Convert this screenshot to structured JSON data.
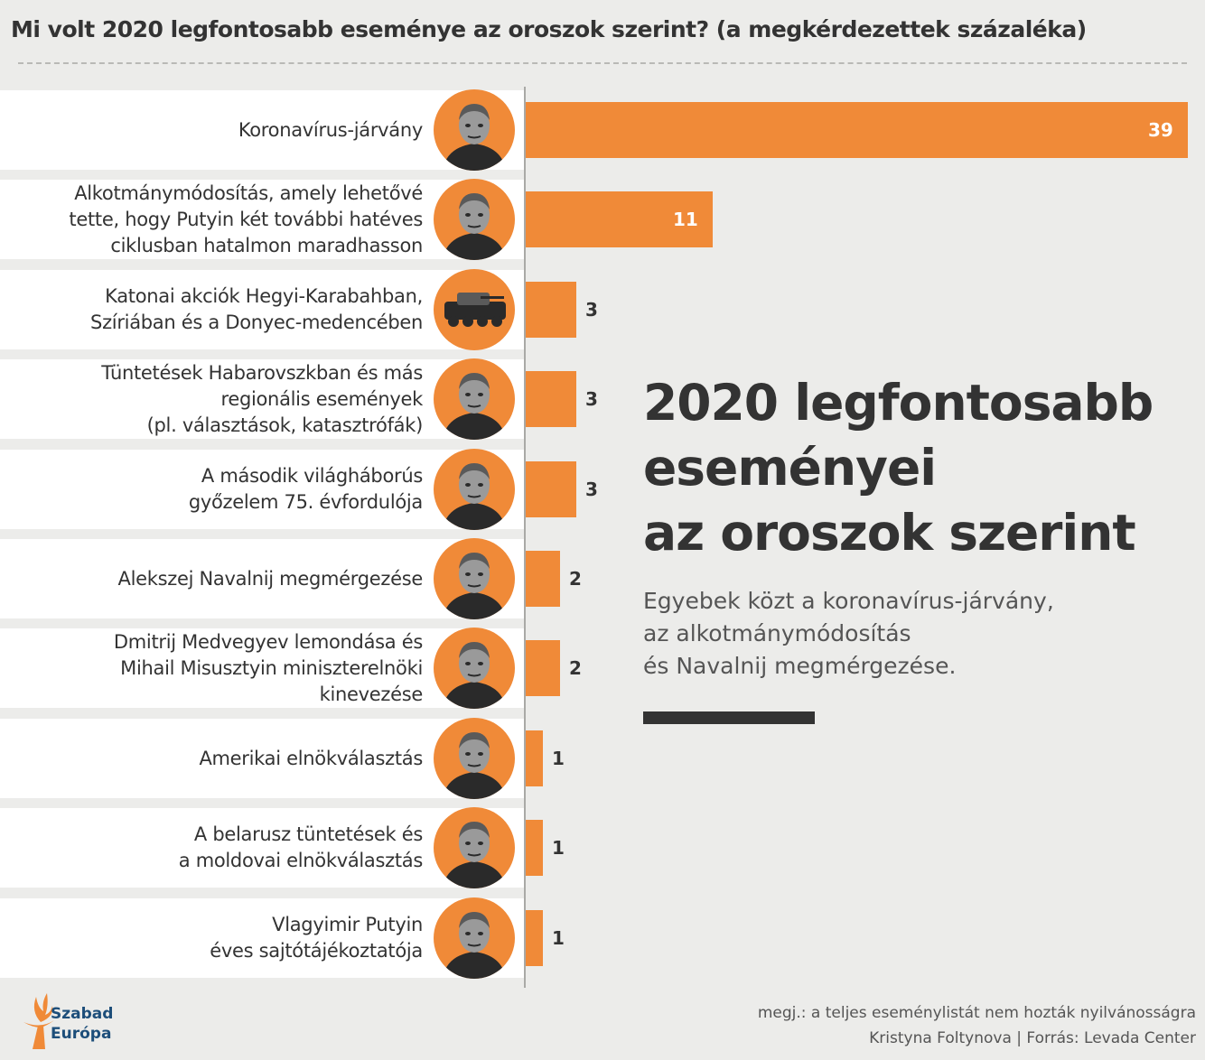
{
  "title": "Mi volt 2020 legfontosabb eseménye az oroszok szerint? (a megkérdezettek százaléka)",
  "headline": [
    "2020 legfontosabb",
    "eseményei",
    "az oroszok szerint"
  ],
  "subtext": [
    "Egyebek közt a koronavírus-járvány,",
    "az alkotmánymódosítás",
    "és Navalnij megmérgezése."
  ],
  "footnote": [
    "megj.: a teljes eseménylistát nem hozták nyilvánosságra",
    "Kristyna Foltynova | Forrás: Levada Center"
  ],
  "logo": {
    "line1": "Szabad",
    "line2": "Európa"
  },
  "colors": {
    "bar": "#f08a38",
    "band": "#ffffff",
    "background": "#ececea",
    "text": "#333333"
  },
  "chart_data": {
    "type": "bar",
    "orientation": "horizontal",
    "title": "Mi volt 2020 legfontosabb eseménye az oroszok szerint? (a megkérdezettek százaléka)",
    "xlim": [
      0,
      39
    ],
    "categories": [
      "Koronavírus-járvány",
      "Alkotmánymódosítás, amely lehetővé\ntette, hogy Putyin két további hatéves\nciklusban hatalmon maradhasson",
      "Katonai akciók Hegyi-Karabahban,\nSzíriában és a  Donyec-medencében",
      "Tüntetések Habarovszkban és más\nregionális események\n(pl. választások, katasztrófák)",
      "A második világháborús\ngyőzelem 75. évfordulója",
      "Alekszej Navalnij megmérgezése",
      "Dmitrij Medvegyev lemondása és\nMihail Misusztyin miniszterelnöki\nkinevezése",
      "Amerikai elnökválasztás",
      "A belarusz tüntetések és\na moldovai elnökválasztás",
      "Vlagyimir Putyin\néves sajtótájékoztatója"
    ],
    "values": [
      39,
      11,
      3,
      3,
      3,
      2,
      2,
      1,
      1,
      1
    ],
    "icons": [
      "hazmat-worker-photo",
      "putin-photo",
      "armored-vehicle-photo",
      "protester-photo",
      "general-photo",
      "navalny-photo",
      "mishustin-photo",
      "biden-photo",
      "belarus-protester-photo",
      "putin-photo"
    ]
  }
}
